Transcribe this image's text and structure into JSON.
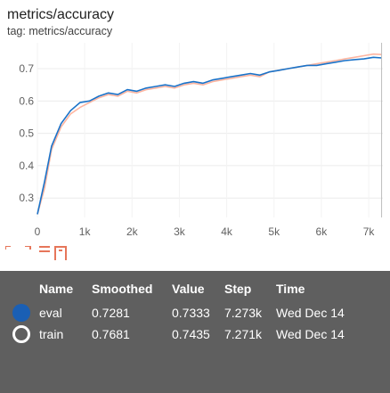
{
  "header": {
    "title": "metrics/accuracy",
    "tag": "tag: metrics/accuracy"
  },
  "chart_data": {
    "type": "line",
    "title": "metrics/accuracy",
    "xlabel": "",
    "ylabel": "",
    "xlim": [
      0,
      7300
    ],
    "ylim": [
      0.24,
      0.78
    ],
    "x_ticks": [
      "0",
      "1k",
      "2k",
      "3k",
      "4k",
      "5k",
      "6k",
      "7k"
    ],
    "x_tick_values": [
      0,
      1000,
      2000,
      3000,
      4000,
      5000,
      6000,
      7000
    ],
    "y_ticks": [
      "0.3",
      "0.4",
      "0.5",
      "0.6",
      "0.7"
    ],
    "y_tick_values": [
      0.3,
      0.4,
      0.5,
      0.6,
      0.7
    ],
    "grid": true,
    "series": [
      {
        "name": "train",
        "color": "#ffb5a0",
        "x": [
          0,
          150,
          300,
          500,
          700,
          900,
          1100,
          1300,
          1500,
          1700,
          1900,
          2100,
          2300,
          2500,
          2700,
          2900,
          3100,
          3300,
          3500,
          3700,
          3900,
          4100,
          4300,
          4500,
          4700,
          4900,
          5100,
          5300,
          5500,
          5700,
          5900,
          6100,
          6300,
          6500,
          6700,
          6900,
          7100,
          7271
        ],
        "y": [
          0.25,
          0.33,
          0.45,
          0.52,
          0.56,
          0.58,
          0.595,
          0.61,
          0.62,
          0.615,
          0.63,
          0.625,
          0.635,
          0.64,
          0.645,
          0.64,
          0.65,
          0.655,
          0.65,
          0.66,
          0.665,
          0.67,
          0.675,
          0.68,
          0.675,
          0.69,
          0.695,
          0.7,
          0.705,
          0.71,
          0.715,
          0.72,
          0.725,
          0.73,
          0.735,
          0.74,
          0.745,
          0.7435
        ]
      },
      {
        "name": "eval",
        "color": "#1a73c9",
        "x": [
          0,
          150,
          300,
          500,
          700,
          900,
          1100,
          1300,
          1500,
          1700,
          1900,
          2100,
          2300,
          2500,
          2700,
          2900,
          3100,
          3300,
          3500,
          3700,
          3900,
          4100,
          4300,
          4500,
          4700,
          4900,
          5100,
          5300,
          5500,
          5700,
          5900,
          6100,
          6300,
          6500,
          6700,
          6900,
          7100,
          7273
        ],
        "y": [
          0.25,
          0.35,
          0.46,
          0.53,
          0.57,
          0.595,
          0.6,
          0.615,
          0.625,
          0.62,
          0.635,
          0.63,
          0.64,
          0.645,
          0.65,
          0.645,
          0.655,
          0.66,
          0.655,
          0.665,
          0.67,
          0.675,
          0.68,
          0.685,
          0.68,
          0.69,
          0.695,
          0.7,
          0.705,
          0.71,
          0.71,
          0.715,
          0.72,
          0.725,
          0.728,
          0.73,
          0.735,
          0.7333
        ]
      }
    ]
  },
  "tooltip": {
    "headers": {
      "name": "Name",
      "smoothed": "Smoothed",
      "value": "Value",
      "step": "Step",
      "time": "Time"
    },
    "rows": [
      {
        "name": "eval",
        "smoothed": "0.7281",
        "value": "0.7333",
        "step": "7.273k",
        "time": "Wed Dec 14",
        "color": "#1a5fb4"
      },
      {
        "name": "train",
        "smoothed": "0.7681",
        "value": "0.7435",
        "step": "7.271k",
        "time": "Wed Dec 14",
        "color": "#5f5f5f"
      }
    ]
  }
}
